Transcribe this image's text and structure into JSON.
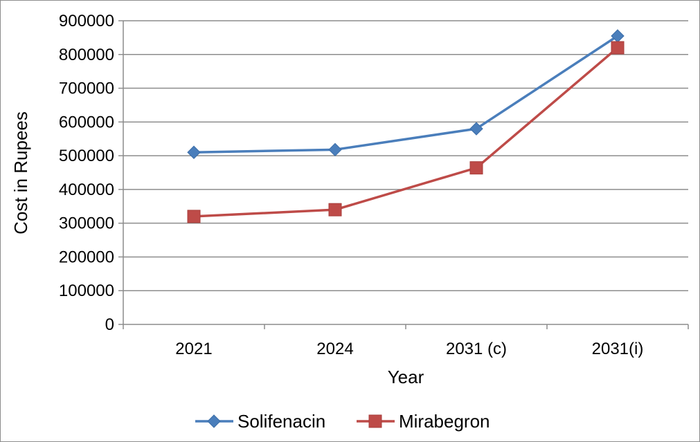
{
  "chart_data": {
    "type": "line",
    "title": "",
    "xlabel": "Year",
    "ylabel": "Cost in Rupees",
    "categories": [
      "2021",
      "2024",
      "2031 (c)",
      "2031(i)"
    ],
    "ylim": [
      0,
      900000
    ],
    "yticks": [
      0,
      100000,
      200000,
      300000,
      400000,
      500000,
      600000,
      700000,
      800000,
      900000
    ],
    "grid": true,
    "legend_position": "bottom",
    "series": [
      {
        "name": "Solifenacin",
        "values": [
          510000,
          518000,
          580000,
          855000
        ],
        "color": "#4a7ebb",
        "marker": "diamond"
      },
      {
        "name": "Mirabegron",
        "values": [
          320000,
          340000,
          464000,
          820000
        ],
        "color": "#be4b48",
        "marker": "square"
      }
    ]
  }
}
